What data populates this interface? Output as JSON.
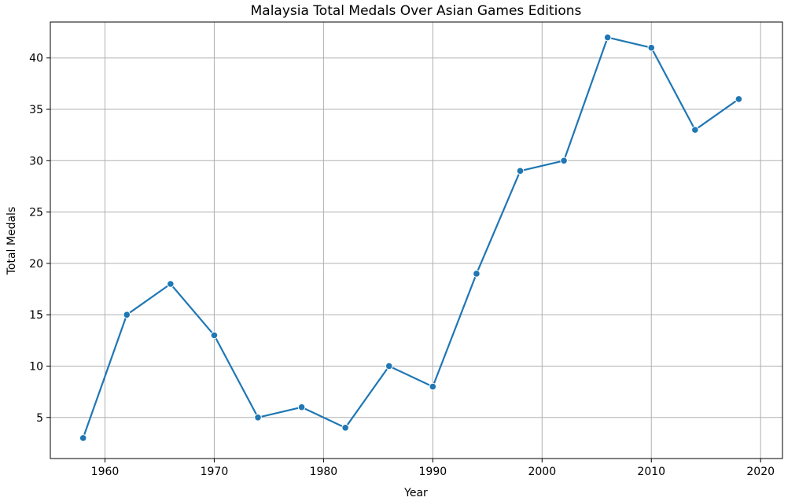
{
  "chart_data": {
    "type": "line",
    "title": "Malaysia Total Medals Over Asian Games Editions",
    "xlabel": "Year",
    "ylabel": "Total Medals",
    "xlim": [
      1955.0,
      2022.0
    ],
    "ylim": [
      1.0,
      43.5
    ],
    "xticks": [
      1960,
      1970,
      1980,
      1990,
      2000,
      2010,
      2020
    ],
    "yticks": [
      5,
      10,
      15,
      20,
      25,
      30,
      35,
      40
    ],
    "grid": true,
    "series": [
      {
        "color": "#1f77b4",
        "marker": "circle",
        "x": [
          1958,
          1962,
          1966,
          1970,
          1974,
          1978,
          1982,
          1986,
          1990,
          1994,
          1998,
          2002,
          2006,
          2010,
          2014,
          2018
        ],
        "y": [
          3,
          15,
          18,
          13,
          5,
          6,
          4,
          10,
          8,
          19,
          29,
          30,
          42,
          41,
          33,
          36
        ]
      }
    ]
  }
}
